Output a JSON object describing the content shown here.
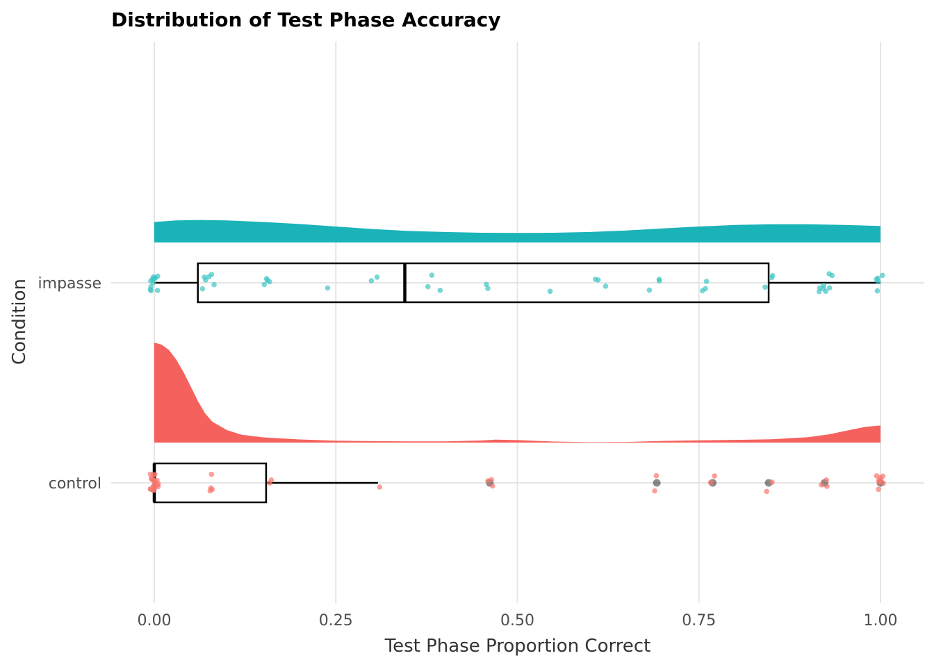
{
  "chart_data": {
    "type": "raincloud",
    "title": "Distribution of Test Phase Accuracy",
    "xlabel": "Test Phase Proportion Correct",
    "ylabel": "Condition",
    "xlim": [
      -0.06,
      1.06
    ],
    "x_ticks": [
      0.0,
      0.25,
      0.5,
      0.75,
      1.0
    ],
    "x_tick_labels": [
      "0.00",
      "0.25",
      "0.50",
      "0.75",
      "1.00"
    ],
    "grid": true,
    "legend": "none",
    "groups": [
      {
        "name": "impasse",
        "color": "#1ab3b8",
        "point_color": "#3ec4c4",
        "box": {
          "min": 0.0,
          "q1": 0.06,
          "median": 0.345,
          "q3": 0.846,
          "max": 1.0
        },
        "density": [
          [
            0.0,
            0.82
          ],
          [
            0.03,
            0.88
          ],
          [
            0.06,
            0.9
          ],
          [
            0.1,
            0.88
          ],
          [
            0.15,
            0.82
          ],
          [
            0.2,
            0.74
          ],
          [
            0.25,
            0.64
          ],
          [
            0.3,
            0.54
          ],
          [
            0.35,
            0.46
          ],
          [
            0.4,
            0.42
          ],
          [
            0.45,
            0.39
          ],
          [
            0.5,
            0.38
          ],
          [
            0.55,
            0.39
          ],
          [
            0.6,
            0.42
          ],
          [
            0.65,
            0.48
          ],
          [
            0.7,
            0.56
          ],
          [
            0.75,
            0.64
          ],
          [
            0.8,
            0.7
          ],
          [
            0.85,
            0.73
          ],
          [
            0.9,
            0.73
          ],
          [
            0.95,
            0.7
          ],
          [
            1.0,
            0.66
          ]
        ],
        "points": [
          0.0,
          0.0,
          0.0,
          0.0,
          0.0,
          0.0,
          0.0,
          0.0,
          0.0,
          0.0,
          0.0,
          0.07,
          0.07,
          0.07,
          0.08,
          0.08,
          0.08,
          0.15,
          0.15,
          0.15,
          0.16,
          0.24,
          0.3,
          0.31,
          0.38,
          0.38,
          0.39,
          0.455,
          0.455,
          0.545,
          0.61,
          0.615,
          0.62,
          0.685,
          0.69,
          0.695,
          0.76,
          0.76,
          0.76,
          0.846,
          0.846,
          0.846,
          0.92,
          0.92,
          0.92,
          0.92,
          0.93,
          0.93,
          0.93,
          0.93,
          1.0,
          1.0,
          1.0,
          1.0,
          1.0
        ]
      },
      {
        "name": "control",
        "color": "#f5625d",
        "point_color": "#f8766d",
        "box": {
          "min": 0.0,
          "q1": 0.0,
          "median": 0.0,
          "q3": 0.154,
          "max": 0.308
        },
        "density": [
          [
            0.0,
            4.8
          ],
          [
            0.01,
            4.7
          ],
          [
            0.02,
            4.45
          ],
          [
            0.03,
            4.0
          ],
          [
            0.04,
            3.4
          ],
          [
            0.05,
            2.7
          ],
          [
            0.06,
            2.0
          ],
          [
            0.07,
            1.4
          ],
          [
            0.08,
            1.0
          ],
          [
            0.1,
            0.6
          ],
          [
            0.12,
            0.38
          ],
          [
            0.15,
            0.25
          ],
          [
            0.2,
            0.15
          ],
          [
            0.25,
            0.09
          ],
          [
            0.3,
            0.07
          ],
          [
            0.35,
            0.06
          ],
          [
            0.4,
            0.06
          ],
          [
            0.45,
            0.1
          ],
          [
            0.47,
            0.14
          ],
          [
            0.5,
            0.12
          ],
          [
            0.55,
            0.05
          ],
          [
            0.6,
            0.02
          ],
          [
            0.65,
            0.03
          ],
          [
            0.7,
            0.08
          ],
          [
            0.75,
            0.11
          ],
          [
            0.8,
            0.13
          ],
          [
            0.85,
            0.16
          ],
          [
            0.9,
            0.26
          ],
          [
            0.93,
            0.4
          ],
          [
            0.96,
            0.62
          ],
          [
            0.98,
            0.76
          ],
          [
            1.0,
            0.82
          ]
        ],
        "points": [
          0.0,
          0.0,
          0.0,
          0.0,
          0.0,
          0.0,
          0.0,
          0.0,
          0.0,
          0.0,
          0.0,
          0.0,
          0.0,
          0.0,
          0.0,
          0.0,
          0.0,
          0.0,
          0.0,
          0.0,
          0.0,
          0.077,
          0.077,
          0.077,
          0.08,
          0.154,
          0.16,
          0.308,
          0.46,
          0.462,
          0.47,
          0.69,
          0.69,
          0.77,
          0.77,
          0.846,
          0.846,
          0.92,
          0.923,
          0.93,
          1.0,
          1.0,
          1.0,
          1.0,
          1.0,
          1.0,
          1.0,
          1.0
        ],
        "outliers": [
          0.462,
          0.692,
          0.769,
          0.846,
          0.923,
          1.0
        ]
      }
    ]
  }
}
